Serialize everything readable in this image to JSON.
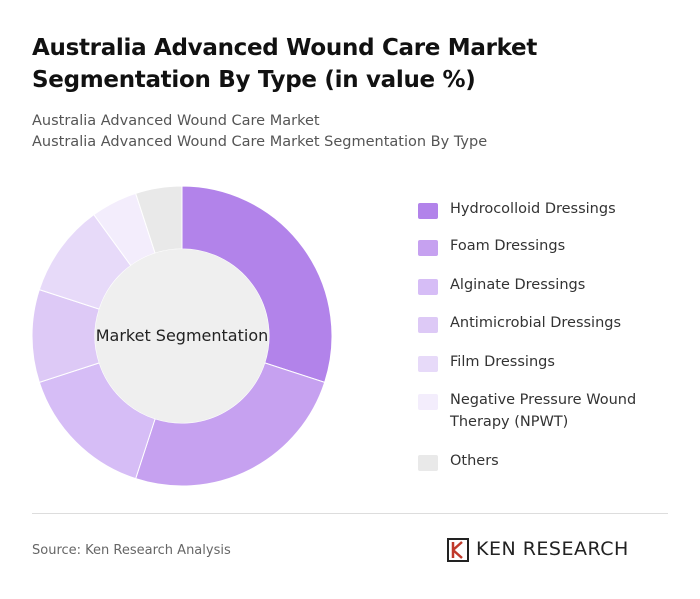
{
  "chart_data": {
    "type": "donut",
    "title": "Australia Advanced Wound Care Market Segmentation By Type (in value %)",
    "subtitles": [
      "Australia Advanced Wound Care Market",
      "Australia Advanced Wound Care Market Segmentation By Type"
    ],
    "center_label": "Market Segmentation",
    "categories": [
      "Hydrocolloid Dressings",
      "Foam Dressings",
      "Alginate Dressings",
      "Antimicrobial Dressings",
      "Film Dressings",
      "Negative Pressure Wound Therapy (NPWT)",
      "Others"
    ],
    "values": [
      30,
      25,
      15,
      10,
      10,
      5,
      5
    ],
    "colors": [
      "#b283ea",
      "#c6a1f0",
      "#d6bdf6",
      "#ddc9f6",
      "#e7daf9",
      "#f3edfc",
      "#e9e9e9"
    ]
  },
  "source": "Source: Ken Research Analysis",
  "brand": "KEN RESEARCH"
}
